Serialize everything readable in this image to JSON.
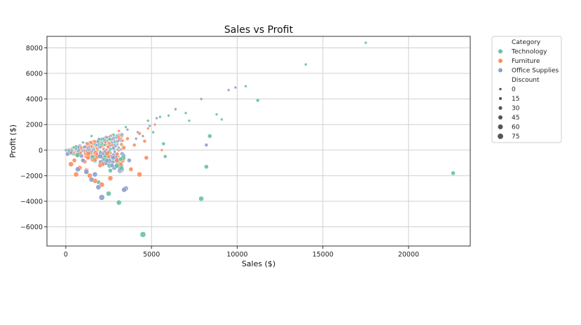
{
  "chart_data": {
    "type": "scatter",
    "title": "Sales vs Profit",
    "xlabel": "Sales ($)",
    "ylabel": "Profit ($)",
    "xlim": [
      -1100,
      23600
    ],
    "ylim": [
      -7500,
      8900
    ],
    "xticks": [
      0,
      5000,
      10000,
      15000,
      20000
    ],
    "yticks": [
      -6000,
      -4000,
      -2000,
      0,
      2000,
      4000,
      6000,
      8000
    ],
    "grid": true,
    "legend": {
      "placement": "outside-right",
      "hue_title": "Category",
      "size_title": "Discount",
      "size_levels": [
        "0",
        "15",
        "30",
        "45",
        "60",
        "75"
      ]
    },
    "colors": {
      "Technology": "#66c2a5",
      "Furniture": "#fc8d62",
      "Office Supplies": "#8da0cb"
    },
    "series": [
      {
        "name": "Technology",
        "points": [
          [
            17500,
            8400,
            0
          ],
          [
            14000,
            6700,
            0
          ],
          [
            10500,
            5000,
            0
          ],
          [
            11200,
            3900,
            15
          ],
          [
            8800,
            2800,
            0
          ],
          [
            9100,
            2400,
            0
          ],
          [
            7000,
            2900,
            0
          ],
          [
            7200,
            2300,
            0
          ],
          [
            6000,
            2700,
            0
          ],
          [
            5500,
            2600,
            0
          ],
          [
            4800,
            2300,
            0
          ],
          [
            5100,
            1400,
            0
          ],
          [
            5700,
            500,
            15
          ],
          [
            5800,
            -500,
            15
          ],
          [
            8400,
            1100,
            30
          ],
          [
            8200,
            -1300,
            30
          ],
          [
            7900,
            -3800,
            45
          ],
          [
            22600,
            -1800,
            30
          ],
          [
            4500,
            -6600,
            60
          ],
          [
            3100,
            -4100,
            45
          ],
          [
            2500,
            -3400,
            45
          ],
          [
            2600,
            -1600,
            30
          ],
          [
            1900,
            -2500,
            30
          ],
          [
            1500,
            1100,
            0
          ],
          [
            3500,
            1800,
            0
          ],
          [
            1000,
            600,
            0
          ],
          [
            600,
            300,
            0
          ],
          [
            2200,
            900,
            0
          ],
          [
            2800,
            1200,
            0
          ],
          [
            3200,
            -700,
            30
          ]
        ]
      },
      {
        "name": "Furniture",
        "points": [
          [
            5200,
            2000,
            0
          ],
          [
            4800,
            1700,
            0
          ],
          [
            4300,
            1300,
            15
          ],
          [
            4600,
            700,
            15
          ],
          [
            4700,
            -600,
            30
          ],
          [
            4300,
            -1900,
            45
          ],
          [
            3800,
            -1500,
            30
          ],
          [
            3200,
            -1100,
            30
          ],
          [
            2600,
            -2200,
            45
          ],
          [
            2100,
            -2700,
            45
          ],
          [
            1700,
            -2400,
            45
          ],
          [
            1400,
            -2000,
            45
          ],
          [
            600,
            -1900,
            45
          ],
          [
            800,
            -1400,
            45
          ],
          [
            300,
            -1100,
            45
          ],
          [
            1100,
            -900,
            30
          ],
          [
            1300,
            -600,
            30
          ],
          [
            1800,
            -300,
            15
          ],
          [
            2300,
            600,
            0
          ],
          [
            2700,
            400,
            0
          ],
          [
            1500,
            300,
            0
          ],
          [
            900,
            200,
            0
          ],
          [
            3100,
            1500,
            0
          ],
          [
            3600,
            900,
            15
          ],
          [
            5600,
            0,
            0
          ],
          [
            4000,
            400,
            15
          ],
          [
            2000,
            -1200,
            30
          ],
          [
            2500,
            -500,
            15
          ],
          [
            500,
            -800,
            30
          ],
          [
            1200,
            -1600,
            45
          ],
          [
            3000,
            -300,
            15
          ],
          [
            3400,
            200,
            15
          ]
        ]
      },
      {
        "name": "Office Supplies",
        "points": [
          [
            9900,
            4900,
            0
          ],
          [
            9500,
            4700,
            0
          ],
          [
            7900,
            4000,
            0
          ],
          [
            6400,
            3200,
            0
          ],
          [
            5300,
            2500,
            0
          ],
          [
            4900,
            1900,
            0
          ],
          [
            4200,
            1400,
            0
          ],
          [
            3600,
            1600,
            0
          ],
          [
            3300,
            1200,
            0
          ],
          [
            8200,
            400,
            15
          ],
          [
            3500,
            -3000,
            45
          ],
          [
            3400,
            -3100,
            45
          ],
          [
            2100,
            -3700,
            60
          ],
          [
            1900,
            -2900,
            45
          ],
          [
            1500,
            -2300,
            45
          ],
          [
            1200,
            -1700,
            45
          ],
          [
            700,
            -1500,
            45
          ],
          [
            1000,
            -800,
            30
          ],
          [
            100,
            -300,
            30
          ],
          [
            0,
            0,
            0
          ],
          [
            300,
            -200,
            15
          ],
          [
            2900,
            300,
            0
          ],
          [
            3700,
            -800,
            30
          ],
          [
            2700,
            -1200,
            30
          ],
          [
            1700,
            -1900,
            45
          ],
          [
            2400,
            1000,
            0
          ],
          [
            4500,
            1100,
            0
          ],
          [
            4100,
            900,
            0
          ],
          [
            1800,
            400,
            0
          ],
          [
            600,
            100,
            0
          ]
        ]
      }
    ]
  }
}
